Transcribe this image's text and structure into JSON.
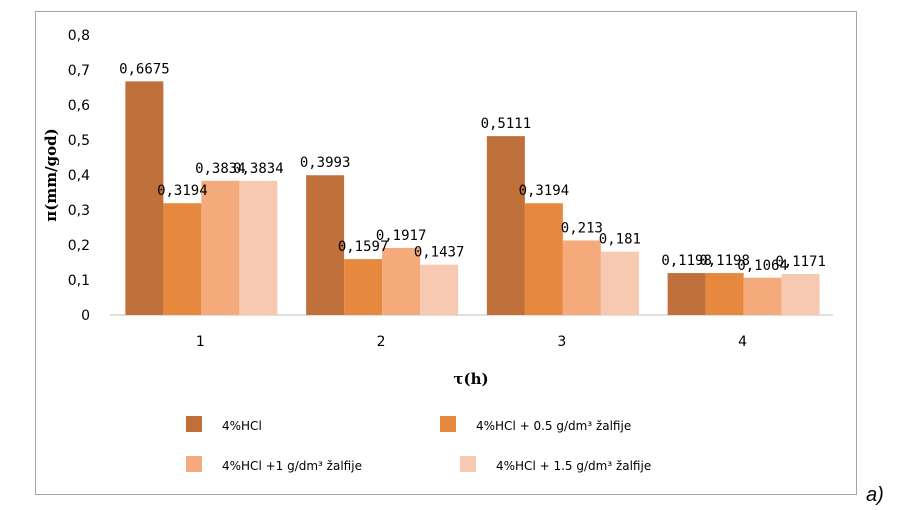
{
  "panel_tag": "a)",
  "chart_data": {
    "type": "bar",
    "categories": [
      "1",
      "2",
      "3",
      "4"
    ],
    "xlabel": "τ(h)",
    "ylabel": "π(mm/god)",
    "ylim": [
      0,
      0.8
    ],
    "yticks": [
      "0",
      "0,1",
      "0,2",
      "0,3",
      "0,4",
      "0,5",
      "0,6",
      "0,7",
      "0,8"
    ],
    "grid": false,
    "legend_position": "bottom",
    "series": [
      {
        "name": "4%HCl",
        "color": "#c0703a",
        "values": [
          0.6675,
          0.3993,
          0.5111,
          0.1198
        ],
        "labels": [
          "0,6675",
          "0,3993",
          "0,5111",
          "0,1198"
        ]
      },
      {
        "name": "4%HCl + 0.5 g/dm³ žalfije",
        "color": "#e6893e",
        "values": [
          0.3194,
          0.1597,
          0.3194,
          0.1198
        ],
        "labels": [
          "0,3194",
          "0,1597",
          "0,3194",
          "0,1198"
        ]
      },
      {
        "name": "4%HCl +1 g/dm³ žalfije",
        "color": "#f4aa7a",
        "values": [
          0.3834,
          0.1917,
          0.213,
          0.1064
        ],
        "labels": [
          "0,3834",
          "0,1917",
          "0,213",
          "0,1064"
        ]
      },
      {
        "name": "4%HCl + 1.5 g/dm³ žalfije",
        "color": "#f6c9b0",
        "values": [
          0.3834,
          0.1437,
          0.181,
          0.1171
        ],
        "labels": [
          "0,3834",
          "0,1437",
          "0,181",
          "0,1171"
        ]
      }
    ]
  }
}
